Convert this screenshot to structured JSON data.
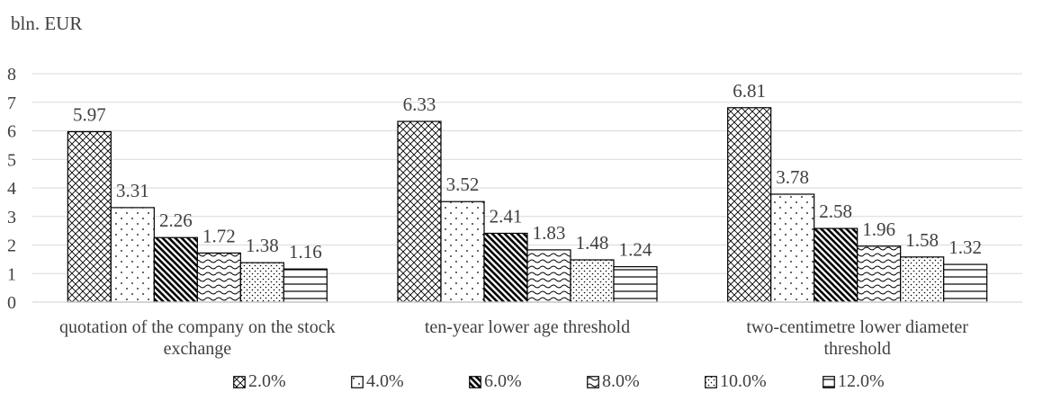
{
  "unit_label": "bln. EUR",
  "chart_data": {
    "type": "bar",
    "title": "",
    "xlabel": "",
    "ylabel": "bln. EUR",
    "ylim": [
      0,
      8
    ],
    "yticks": [
      "0",
      "1",
      "2",
      "3",
      "4",
      "5",
      "6",
      "7",
      "8"
    ],
    "grid": true,
    "legend_position": "bottom",
    "categories": [
      [
        "quotation of the company on the stock",
        "exchange"
      ],
      [
        "ten-year lower age threshold"
      ],
      [
        "two-centimetre lower diameter",
        "threshold"
      ]
    ],
    "series": [
      {
        "name": "2.0%",
        "pattern": "crosshatch",
        "values": [
          5.97,
          6.33,
          6.81
        ],
        "labels": [
          "5.97",
          "6.33",
          "6.81"
        ]
      },
      {
        "name": "4.0%",
        "pattern": "sparse-dots",
        "values": [
          3.31,
          3.52,
          3.78
        ],
        "labels": [
          "3.31",
          "3.52",
          "3.78"
        ]
      },
      {
        "name": "6.0%",
        "pattern": "diagonal-stripes",
        "values": [
          2.26,
          2.41,
          2.58
        ],
        "labels": [
          "2.26",
          "2.41",
          "2.58"
        ]
      },
      {
        "name": "8.0%",
        "pattern": "waves",
        "values": [
          1.72,
          1.83,
          1.96
        ],
        "labels": [
          "1.72",
          "1.83",
          "1.96"
        ]
      },
      {
        "name": "10.0%",
        "pattern": "dense-dots",
        "values": [
          1.38,
          1.48,
          1.58
        ],
        "labels": [
          "1.38",
          "1.48",
          "1.58"
        ]
      },
      {
        "name": "12.0%",
        "pattern": "horizontal-lines",
        "values": [
          1.16,
          1.24,
          1.32
        ],
        "labels": [
          "1.16",
          "1.24",
          "1.32"
        ]
      }
    ],
    "colors": {
      "grid": "#d9d9d9",
      "bar_stroke": "#000000",
      "text": "#404040",
      "background": "#ffffff"
    }
  }
}
